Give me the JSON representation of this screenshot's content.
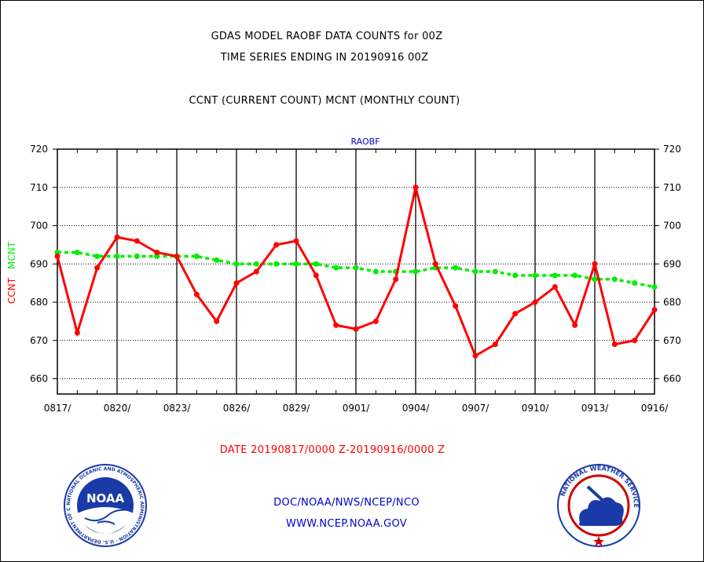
{
  "titles": {
    "line1": "GDAS MODEL RAOBF DATA COUNTS for 00Z",
    "line2": "TIME SERIES ENDING IN 20190916 00Z",
    "line3": "CCNT (CURRENT COUNT) MCNT (MONTHLY COUNT)"
  },
  "footer": {
    "date_range": "DATE 20190817/0000 Z-20190916/0000 Z",
    "org": "DOC/NOAA/NWS/NCEP/NCO",
    "url": "WWW.NCEP.NOAA.GOV"
  },
  "logos": {
    "left": "noaa-logo",
    "right": "national-weather-service-logo",
    "left_text": "NOAA",
    "left_ring_text": "NATIONAL OCEANIC AND ATMOSPHERIC ADMINISTRATION · U.S. DEPARTMENT OF COMMERCE",
    "right_ring_text": "NATIONAL WEATHER SERVICE"
  },
  "colors": {
    "ccnt": "#ff0000",
    "mcnt": "#00ee00",
    "panel_label": "#0000cc"
  },
  "chart_data": {
    "type": "line",
    "panel_label": "RAOBF",
    "ylabel_ccnt": "CCNT",
    "ylabel_mcnt": "MCNT",
    "ylim": [
      656,
      720
    ],
    "yticks": [
      660,
      670,
      680,
      690,
      700,
      710,
      720
    ],
    "xtick_labels": [
      "0817/",
      "0820/",
      "0823/",
      "0826/",
      "0829/",
      "0901/",
      "0904/",
      "0907/",
      "0910/",
      "0913/",
      "0916/"
    ],
    "x": [
      "0817",
      "0818",
      "0819",
      "0820",
      "0821",
      "0822",
      "0823",
      "0824",
      "0825",
      "0826",
      "0827",
      "0828",
      "0829",
      "0830",
      "0831",
      "0901",
      "0902",
      "0903",
      "0904",
      "0905",
      "0906",
      "0907",
      "0908",
      "0909",
      "0910",
      "0911",
      "0912",
      "0913",
      "0914",
      "0915",
      "0916"
    ],
    "grid": true,
    "series": [
      {
        "name": "CCNT",
        "color": "#ff0000",
        "values": [
          692,
          672,
          689,
          697,
          696,
          693,
          692,
          682,
          675,
          685,
          688,
          695,
          696,
          687,
          674,
          673,
          675,
          686,
          710,
          690,
          679,
          666,
          669,
          677,
          680,
          684,
          674,
          690,
          669,
          670,
          678
        ]
      },
      {
        "name": "MCNT",
        "color": "#00ee00",
        "values": [
          693,
          693,
          692,
          692,
          692,
          692,
          692,
          692,
          691,
          690,
          690,
          690,
          690,
          690,
          689,
          689,
          688,
          688,
          688,
          689,
          689,
          688,
          688,
          687,
          687,
          687,
          687,
          686,
          686,
          685,
          684
        ]
      }
    ]
  }
}
